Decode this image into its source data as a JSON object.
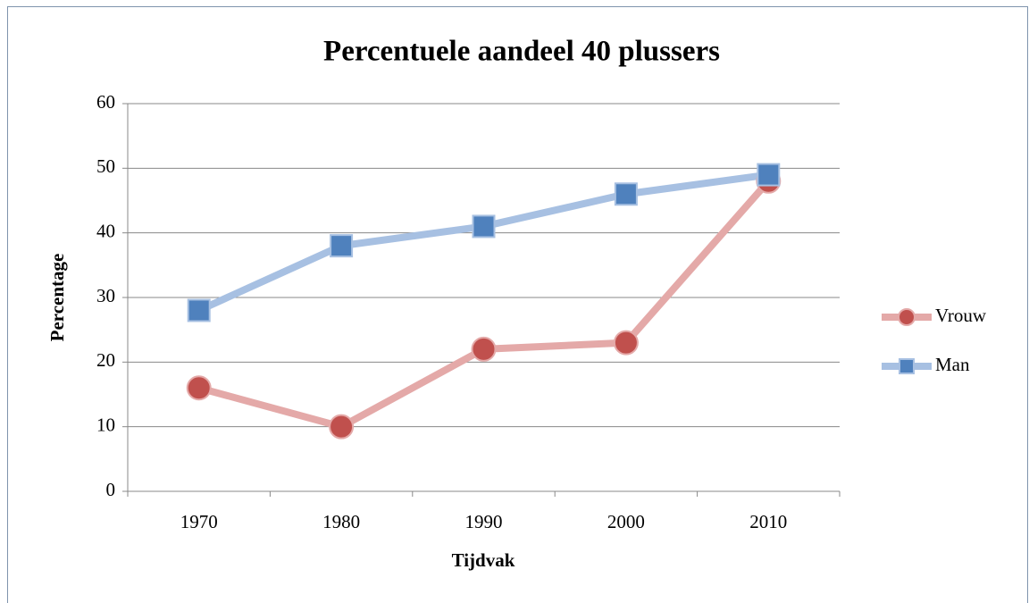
{
  "chart_data": {
    "type": "line",
    "title": "Percentuele aandeel 40 plussers",
    "x_label": "Tijdvak",
    "y_label": "Percentage",
    "categories": [
      "1970",
      "1980",
      "1990",
      "2000",
      "2010"
    ],
    "series": [
      {
        "name": "Vrouw",
        "color": "#c0504d",
        "line_color": "#e4a9a8",
        "marker": "circle",
        "values": [
          16,
          10,
          22,
          23,
          48
        ]
      },
      {
        "name": "Man",
        "color": "#4f81bd",
        "line_color": "#a7c0e2",
        "marker": "square",
        "values": [
          28,
          38,
          41,
          46,
          49
        ]
      }
    ],
    "ylim": [
      0,
      60
    ],
    "yticks": [
      0,
      10,
      20,
      30,
      40,
      50,
      60
    ],
    "grid": true,
    "legend": "right"
  }
}
